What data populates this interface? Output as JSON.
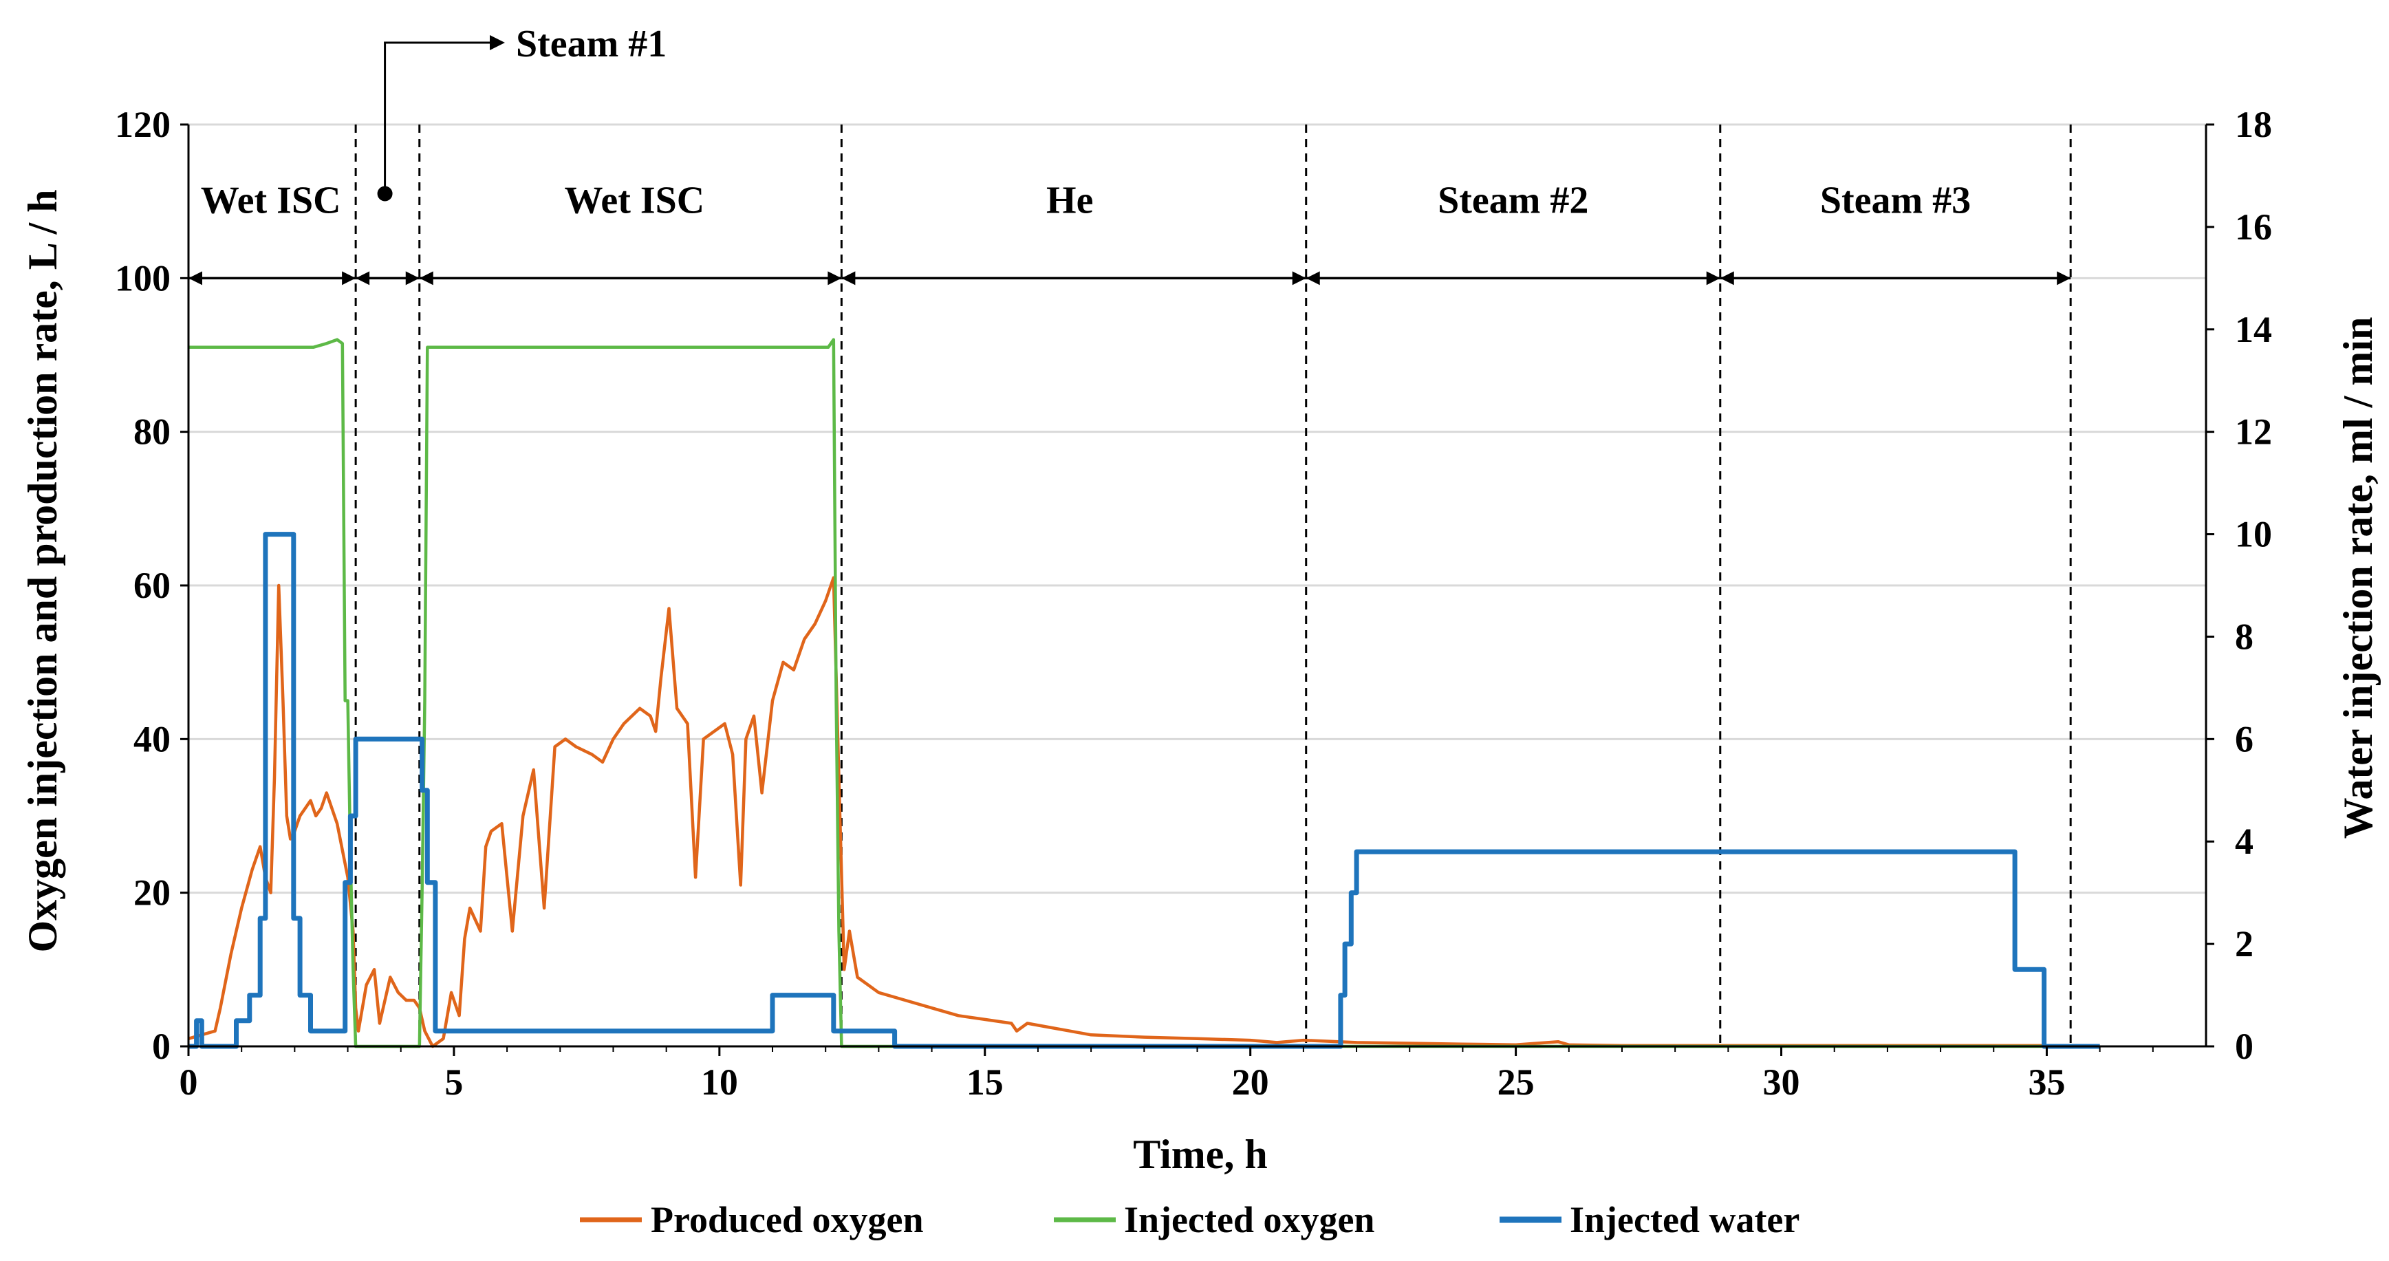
{
  "chart_data": {
    "type": "line",
    "xlabel": "Time, h",
    "ylabel_left": "Oxygen injection and production rate, L / h",
    "ylabel_right": "Water injection rate, ml / min",
    "xlim": [
      0,
      38
    ],
    "ylim_left": [
      0,
      120
    ],
    "ylim_right": [
      0,
      18
    ],
    "x_ticks": [
      0,
      5,
      10,
      15,
      20,
      25,
      30,
      35
    ],
    "x_tick_labels": [
      "0",
      "5",
      "10",
      "15",
      "20",
      "25",
      "30",
      "35"
    ],
    "y_left_ticks": [
      0,
      20,
      40,
      60,
      80,
      100,
      120
    ],
    "y_left_tick_labels": [
      "0",
      "20",
      "40",
      "60",
      "80",
      "100",
      "120"
    ],
    "y_right_ticks": [
      0,
      2,
      4,
      6,
      8,
      10,
      12,
      14,
      16,
      18
    ],
    "y_right_tick_labels": [
      "0",
      "2",
      "4",
      "6",
      "8",
      "10",
      "12",
      "14",
      "16",
      "18"
    ],
    "grid": "horizontal",
    "legend_position": "bottom",
    "phase_boundaries": [
      3.15,
      4.35,
      12.3,
      21.05,
      28.85,
      35.45
    ],
    "phases": [
      {
        "label": "Wet ISC",
        "start": 0,
        "end": 3.15,
        "label_x": 1.55,
        "bracket_start": 0,
        "bracket_end": 3.15
      },
      {
        "label": "Steam #1",
        "start": 3.15,
        "end": 4.35,
        "label_x": null,
        "bracket_start": 3.15,
        "bracket_end": 4.35
      },
      {
        "label": "Wet ISC",
        "start": 4.35,
        "end": 12.3,
        "label_x": 8.4,
        "bracket_start": 4.35,
        "bracket_end": 12.3
      },
      {
        "label": "He",
        "start": 12.3,
        "end": 21.05,
        "label_x": 16.6,
        "bracket_start": 12.3,
        "bracket_end": 21.05
      },
      {
        "label": "Steam #2",
        "start": 21.05,
        "end": 28.85,
        "label_x": 24.95,
        "bracket_start": 21.05,
        "bracket_end": 28.85
      },
      {
        "label": "Steam #3",
        "start": 28.85,
        "end": 35.45,
        "label_x": 32.15,
        "bracket_start": 28.85,
        "bracket_end": 35.45
      }
    ],
    "bracket_level": 100,
    "steam1_callout": {
      "label": "Steam #1",
      "anchor_x": 3.7,
      "anchor_y": 111
    },
    "series": [
      {
        "name": "Produced oxygen",
        "axis": "left",
        "color": "#E0651A",
        "x": [
          0,
          0.5,
          0.6,
          0.8,
          1.0,
          1.2,
          1.35,
          1.45,
          1.55,
          1.62,
          1.7,
          1.78,
          1.85,
          1.92,
          2.0,
          2.1,
          2.3,
          2.4,
          2.5,
          2.6,
          2.7,
          2.8,
          3.0,
          3.1,
          3.15,
          3.2,
          3.35,
          3.5,
          3.6,
          3.8,
          3.95,
          4.1,
          4.25,
          4.35,
          4.45,
          4.6,
          4.8,
          4.95,
          5.1,
          5.2,
          5.3,
          5.5,
          5.6,
          5.7,
          5.9,
          6.1,
          6.3,
          6.5,
          6.7,
          6.9,
          7.1,
          7.3,
          7.6,
          7.8,
          8.0,
          8.2,
          8.5,
          8.7,
          8.8,
          8.9,
          9.05,
          9.2,
          9.4,
          9.55,
          9.7,
          9.9,
          10.1,
          10.25,
          10.4,
          10.5,
          10.65,
          10.8,
          11.0,
          11.2,
          11.4,
          11.6,
          11.8,
          12.0,
          12.15,
          12.25,
          12.35,
          12.45,
          12.6,
          12.8,
          13.0,
          13.5,
          14.0,
          14.5,
          15.0,
          15.5,
          15.6,
          15.8,
          16.2,
          16.6,
          17.0,
          18.0,
          19.0,
          20.0,
          20.5,
          21.0,
          22.0,
          23.0,
          24.0,
          25.0,
          25.8,
          26.0,
          27.0,
          28.0,
          30.0,
          33.0,
          36.0
        ],
        "y": [
          1,
          2,
          5,
          12,
          18,
          23,
          26,
          22,
          20,
          35,
          60,
          45,
          30,
          27,
          28,
          30,
          32,
          30,
          31,
          33,
          31,
          29,
          22,
          15,
          5,
          2,
          8,
          10,
          3,
          9,
          7,
          6,
          6,
          5,
          2,
          0,
          1,
          7,
          4,
          14,
          18,
          15,
          26,
          28,
          29,
          15,
          30,
          36,
          18,
          39,
          40,
          39,
          38,
          37,
          40,
          42,
          44,
          43,
          41,
          48,
          57,
          44,
          42,
          22,
          40,
          41,
          42,
          38,
          21,
          40,
          43,
          33,
          45,
          50,
          49,
          53,
          55,
          58,
          61,
          35,
          10,
          15,
          9,
          8,
          7,
          6,
          5,
          4,
          3.5,
          3,
          2,
          3,
          2.5,
          2,
          1.5,
          1.2,
          1,
          0.8,
          0.5,
          0.8,
          0.5,
          0.4,
          0.3,
          0.2,
          0.6,
          0.2,
          0.1,
          0.1,
          0.1,
          0.1,
          0.1
        ]
      },
      {
        "name": "Injected oxygen",
        "axis": "left",
        "color": "#5DB947",
        "x": [
          0,
          2.35,
          2.6,
          2.8,
          2.9,
          2.95,
          3.0,
          3.05,
          3.1,
          3.15,
          3.2,
          4.35,
          4.4,
          4.45,
          4.5,
          4.55,
          12.05,
          12.15,
          12.2,
          12.25,
          12.3,
          12.35,
          36.0
        ],
        "y": [
          91,
          91,
          91.5,
          92,
          91.5,
          45,
          45,
          25,
          10,
          0,
          0,
          0,
          20,
          45,
          91,
          91,
          91,
          92,
          45,
          15,
          0,
          0,
          0
        ]
      },
      {
        "name": "Injected water",
        "axis": "right",
        "color": "#1E74BC",
        "x": [
          0,
          0.15,
          0.15,
          0.25,
          0.25,
          0.9,
          0.9,
          1.15,
          1.15,
          1.35,
          1.35,
          1.45,
          1.45,
          1.98,
          1.98,
          2.1,
          2.1,
          2.3,
          2.3,
          2.95,
          2.95,
          3.05,
          3.05,
          3.15,
          3.15,
          4.4,
          4.4,
          4.5,
          4.5,
          4.65,
          4.65,
          11.0,
          11.0,
          12.15,
          12.15,
          13.3,
          13.3,
          21.7,
          21.7,
          21.78,
          21.78,
          21.9,
          21.9,
          22.0,
          22.0,
          34.4,
          34.4,
          34.95,
          34.95,
          36.0
        ],
        "y": [
          0,
          0,
          0.5,
          0.5,
          0,
          0,
          0.5,
          0.5,
          1,
          1,
          2.5,
          2.5,
          10,
          10,
          2.5,
          2.5,
          1,
          1,
          0.3,
          0.3,
          3.2,
          3.2,
          4.5,
          4.5,
          6,
          6,
          5,
          5,
          3.2,
          3.2,
          0.3,
          0.3,
          1,
          1,
          0.3,
          0.3,
          0,
          0,
          1,
          1,
          2,
          2,
          3,
          3,
          3.8,
          3.8,
          1.5,
          1.5,
          0,
          0
        ]
      }
    ]
  }
}
